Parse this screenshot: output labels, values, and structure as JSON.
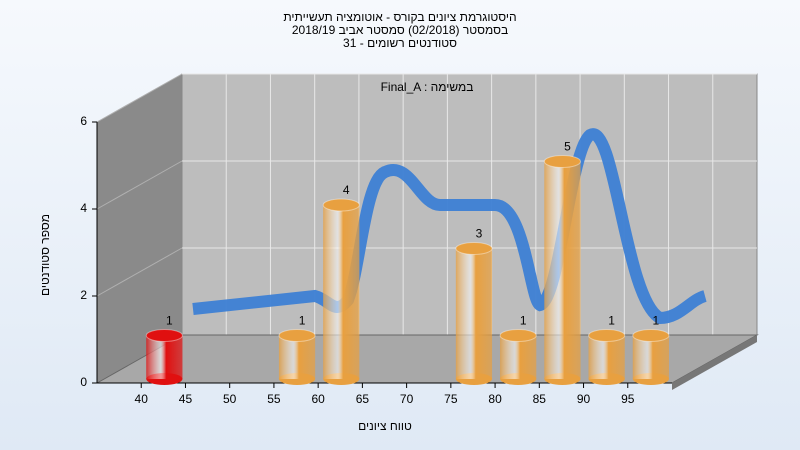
{
  "chart_data": {
    "type": "histogram",
    "title": [
      "היסטוגרמת ציונים בקורס - אוטומציה תעשייתית",
      "בסמסטר (02/2018) סמסטר אביב 2018/19",
      "סטודנטים רשומים - 31"
    ],
    "subtitle": "Final_A : במשימה",
    "x_label": "טווח ציונים",
    "y_label": "מספר סטודנטים",
    "bins": [
      40,
      45,
      50,
      55,
      60,
      65,
      70,
      75,
      80,
      85,
      90,
      95,
      100
    ],
    "values": [
      1,
      0,
      0,
      1,
      4,
      0,
      0,
      3,
      1,
      5,
      1,
      1
    ],
    "colors": [
      "#e01010",
      "#e8a040",
      "#e8a040",
      "#e8a040",
      "#e8a040",
      "#e8a040",
      "#e8a040",
      "#e8a040",
      "#e8a040",
      "#e8a040",
      "#e8a040",
      "#e8a040"
    ],
    "xlim": [
      35,
      100
    ],
    "xticks": [
      40,
      45,
      50,
      55,
      60,
      65,
      70,
      75,
      80,
      85,
      90,
      95
    ],
    "ylim": [
      0,
      6
    ],
    "yticks": [
      0,
      2,
      4,
      6
    ],
    "grid": true
  }
}
